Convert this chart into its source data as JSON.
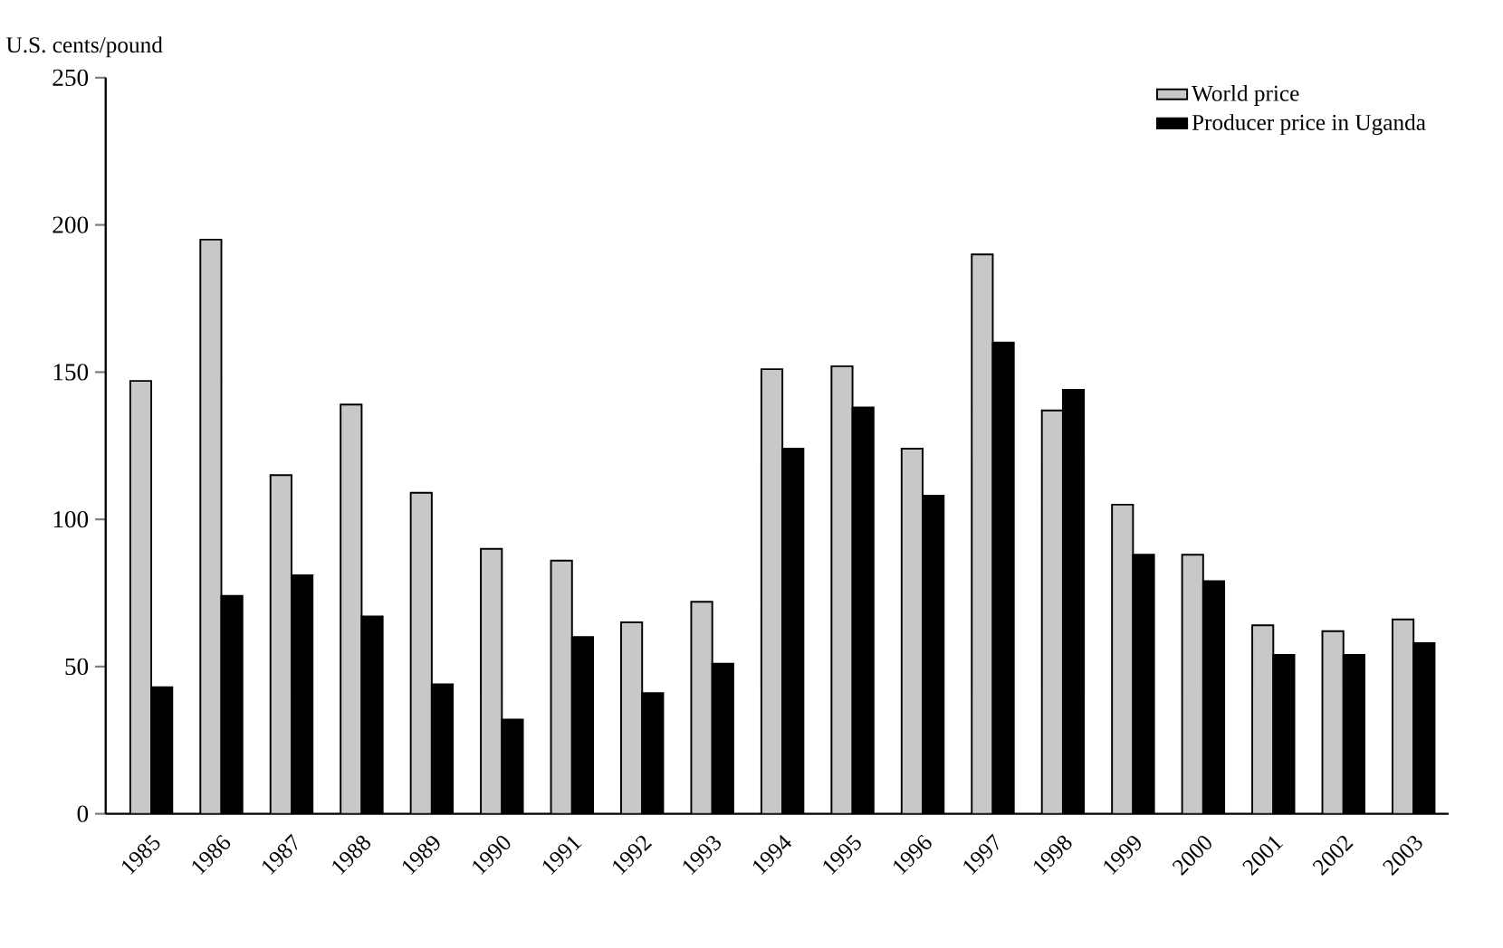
{
  "chart_data": {
    "type": "bar",
    "ylabel": "U.S. cents/pound",
    "categories": [
      "1985",
      "1986",
      "1987",
      "1988",
      "1989",
      "1990",
      "1991",
      "1992",
      "1993",
      "1994",
      "1995",
      "1996",
      "1997",
      "1998",
      "1999",
      "2000",
      "2001",
      "2002",
      "2003"
    ],
    "series": [
      {
        "name": "World price",
        "color": "#c8c8c8",
        "values": [
          147,
          195,
          115,
          139,
          109,
          90,
          86,
          65,
          72,
          151,
          152,
          124,
          190,
          137,
          105,
          88,
          64,
          62,
          66
        ]
      },
      {
        "name": "Producer price in Uganda",
        "color": "#000000",
        "values": [
          43,
          74,
          81,
          67,
          44,
          32,
          60,
          41,
          51,
          124,
          138,
          108,
          160,
          144,
          88,
          79,
          54,
          54,
          58
        ]
      }
    ],
    "ylim": [
      0,
      250
    ],
    "yticks": [
      0,
      50,
      100,
      150,
      200,
      250
    ],
    "grid": false,
    "legend": "top right"
  }
}
